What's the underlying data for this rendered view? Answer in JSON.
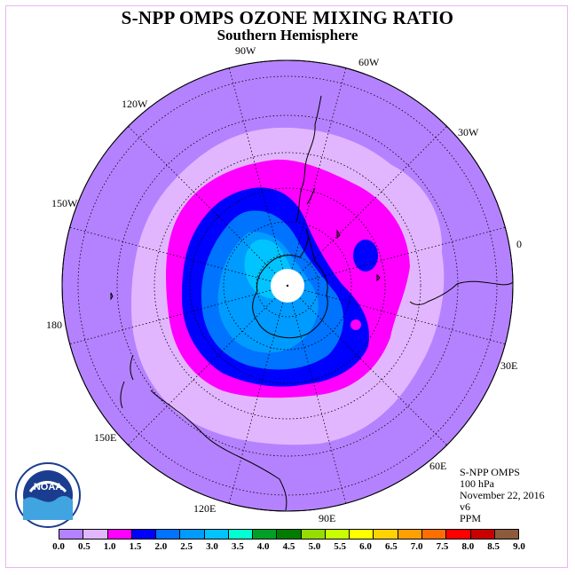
{
  "header": {
    "title": "S-NPP OMPS OZONE MIXING RATIO",
    "subtitle": "Southern Hemisphere"
  },
  "map": {
    "projection": "polar-stereographic-south",
    "colors": {
      "background_field": "#b582ff",
      "ring_light": "#e2b6ff",
      "magenta": "#ff00ff",
      "dark_blue": "#0000ff",
      "mid_blue": "#0073ff",
      "light_blue": "#00a0ff",
      "cyan_blue": "#00c8ff",
      "pole_mask": "#ffffff",
      "coast": "#000000",
      "graticule": "#000000",
      "border": "#e9b6ec"
    },
    "longitude_labels": [
      "90W",
      "60W",
      "30W",
      "0",
      "30E",
      "60E",
      "90E",
      "120E",
      "150E",
      "180",
      "150W",
      "120W"
    ]
  },
  "info_block": {
    "lines": [
      "S-NPP OMPS",
      "100 hPa",
      "November 22, 2016",
      "v6",
      "PPM"
    ]
  },
  "logo": {
    "text": "NOAA"
  },
  "colorbar": {
    "units": "PPM",
    "ticks": [
      "0.0",
      "0.5",
      "1.0",
      "1.5",
      "2.0",
      "2.5",
      "3.0",
      "3.5",
      "4.0",
      "4.5",
      "5.0",
      "5.5",
      "6.0",
      "6.5",
      "7.0",
      "7.5",
      "8.0",
      "8.5",
      "9.0"
    ],
    "colors": [
      "#b582ff",
      "#e2b6ff",
      "#ff00ff",
      "#0000ff",
      "#0073ff",
      "#009bff",
      "#00c3ff",
      "#00ffd2",
      "#00a028",
      "#007d00",
      "#96dc00",
      "#c8ff00",
      "#ffff00",
      "#ffd200",
      "#ffa000",
      "#ff6e00",
      "#ff0000",
      "#c80000",
      "#8c5a3c"
    ]
  }
}
